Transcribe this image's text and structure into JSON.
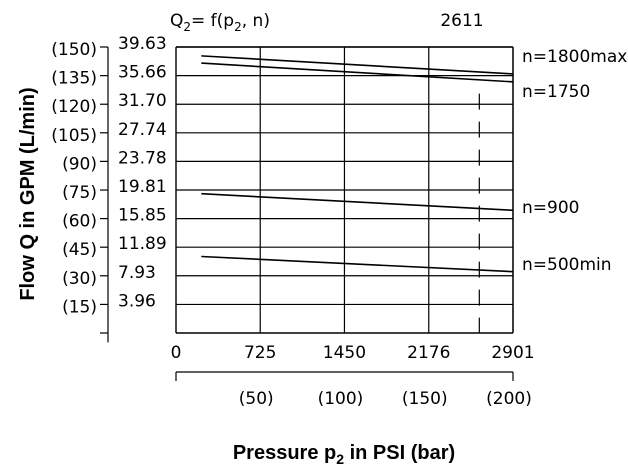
{
  "chart_data": {
    "type": "line",
    "formula": "Q",
    "formula_sub1": "2",
    "formula_mid": "= f(p",
    "formula_sub2": "2",
    "formula_end": ", n)",
    "model": "2611",
    "xlabel": "Pressure p",
    "xlabel_sub": "2",
    "xlabel_end": " in PSI (bar)",
    "ylabel": "Flow Q in GPM (L/min)",
    "x_ticks": [
      "0",
      "725",
      "1450",
      "2176",
      "2901"
    ],
    "x_tick_values": [
      0,
      725,
      1450,
      2176,
      2901
    ],
    "x_ticks_bar": [
      "(50)",
      "(100)",
      "(150)",
      "(200)"
    ],
    "x_ticks_bar_values": [
      725,
      1450,
      2176,
      2901
    ],
    "y_ticks_gpm": [
      "39.63",
      "35.66",
      "31.70",
      "27.74",
      "23.78",
      "19.81",
      "15.85",
      "11.89",
      "7.93",
      "3.96"
    ],
    "y_ticks_lmin": [
      "(150)",
      "(135)",
      "(120)",
      "(105)",
      "(90)",
      "(75)",
      "(60)",
      "(45)",
      "(30)",
      "(15)"
    ],
    "y_tick_values": [
      39.63,
      35.66,
      31.7,
      27.74,
      23.78,
      19.81,
      15.85,
      11.89,
      7.93,
      3.96
    ],
    "xlim": [
      0,
      2901
    ],
    "ylim": [
      0,
      39.63
    ],
    "marker_x": 2611,
    "series": [
      {
        "name": "n=1800max",
        "x": [
          218,
          2901
        ],
        "y": [
          38.4,
          35.9
        ]
      },
      {
        "name": "n=1750",
        "x": [
          218,
          2901
        ],
        "y": [
          37.4,
          34.8
        ]
      },
      {
        "name": "n=900",
        "x": [
          218,
          2901
        ],
        "y": [
          19.3,
          17.0
        ]
      },
      {
        "name": "n=500min",
        "x": [
          218,
          2901
        ],
        "y": [
          10.6,
          8.5
        ]
      }
    ]
  }
}
